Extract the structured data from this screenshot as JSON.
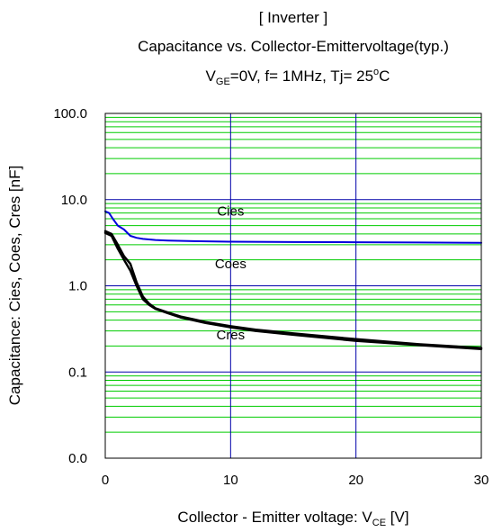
{
  "chart_data": {
    "type": "line",
    "title": "[ Inverter ]",
    "subtitle": "Capacitance vs. Collector-Emittervoltage(typ.)",
    "conditions": {
      "vge_symbol": "V",
      "vge_subscript": "GE",
      "vge_value": "=0V,  f= 1MHz,  Tj= 25",
      "degree": "o",
      "unit_c": "C"
    },
    "xlabel": {
      "text": "Collector - Emitter voltage: V",
      "subscript": "CE",
      "suffix": " [V]"
    },
    "ylabel": "Capacitance: Cies, Coes, Cres [nF]",
    "xlim": [
      0,
      30
    ],
    "ylim": [
      0.01,
      100
    ],
    "yscale": "log",
    "x_ticks": [
      {
        "value": 0,
        "label": "0"
      },
      {
        "value": 10,
        "label": "10"
      },
      {
        "value": 20,
        "label": "20"
      },
      {
        "value": 30,
        "label": "30"
      }
    ],
    "y_ticks": [
      {
        "value": 0.01,
        "label": "0.0"
      },
      {
        "value": 0.1,
        "label": "0.1"
      },
      {
        "value": 1,
        "label": "1.0"
      },
      {
        "value": 10,
        "label": "10.0"
      },
      {
        "value": 100,
        "label": "100.0"
      }
    ],
    "grid": true,
    "colors": {
      "major_grid": "#0000aa",
      "minor_grid": "#00cc00",
      "cies": "#0000dd",
      "coes": "#000000",
      "cres": "#000000"
    },
    "series": [
      {
        "name": "Cies",
        "label_at": [
          10,
          6.5
        ],
        "x": [
          0,
          0.3,
          0.6,
          1.0,
          1.5,
          2.0,
          2.5,
          3,
          4,
          5,
          7,
          10,
          15,
          20,
          25,
          30
        ],
        "y": [
          7.3,
          7.0,
          6.0,
          5.0,
          4.5,
          3.8,
          3.6,
          3.5,
          3.4,
          3.35,
          3.3,
          3.25,
          3.22,
          3.2,
          3.18,
          3.15
        ]
      },
      {
        "name": "Coes",
        "label_at": [
          10,
          1.6
        ],
        "x": [
          0,
          0.5,
          1.0,
          1.5,
          2.0,
          2.5,
          3.0,
          3.5,
          4,
          5,
          6,
          7,
          8,
          10,
          12,
          15,
          20,
          25,
          30
        ],
        "y": [
          4.3,
          4.0,
          3.0,
          2.2,
          1.8,
          1.1,
          0.75,
          0.62,
          0.55,
          0.49,
          0.44,
          0.41,
          0.38,
          0.34,
          0.31,
          0.28,
          0.24,
          0.21,
          0.19
        ]
      },
      {
        "name": "Cres",
        "label_at": [
          10,
          0.24
        ],
        "x": [
          0,
          0.5,
          1.0,
          1.5,
          2.0,
          2.5,
          3.0,
          3.5,
          4,
          5,
          6,
          7,
          8,
          10,
          12,
          15,
          20,
          25,
          30
        ],
        "y": [
          4.1,
          3.8,
          2.7,
          2.0,
          1.5,
          1.0,
          0.7,
          0.6,
          0.54,
          0.48,
          0.43,
          0.4,
          0.37,
          0.33,
          0.3,
          0.27,
          0.23,
          0.205,
          0.185
        ]
      }
    ]
  }
}
